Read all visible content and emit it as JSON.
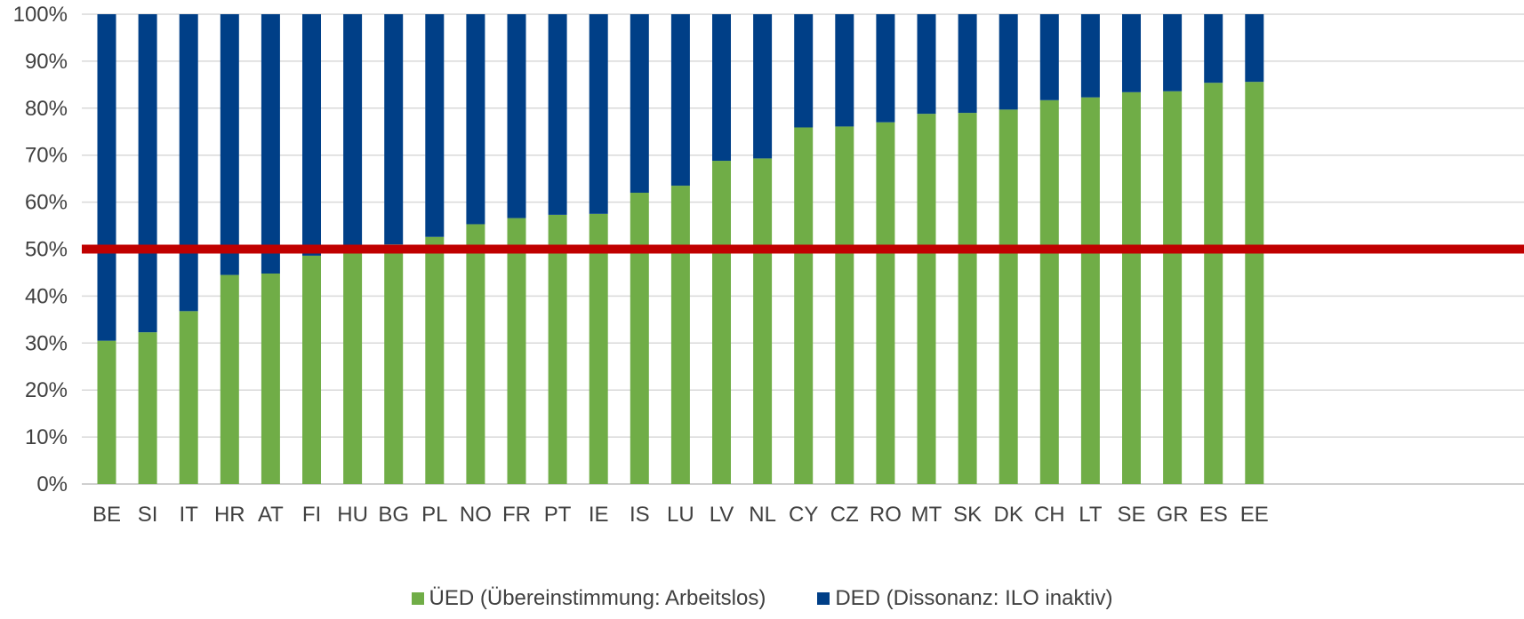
{
  "chart_data": {
    "type": "bar",
    "stacked": true,
    "percent": true,
    "categories": [
      "BE",
      "SI",
      "IT",
      "HR",
      "AT",
      "FI",
      "HU",
      "BG",
      "PL",
      "NO",
      "FR",
      "PT",
      "IE",
      "IS",
      "LU",
      "LV",
      "NL",
      "CY",
      "CZ",
      "RO",
      "MT",
      "SK",
      "DK",
      "CH",
      "LT",
      "SE",
      "GR",
      "ES",
      "EE"
    ],
    "series": [
      {
        "name": "ÜED (Übereinstimmung: Arbeitslos)",
        "color": "#70ad47",
        "values": [
          30.5,
          32.3,
          36.8,
          44.5,
          44.8,
          48.6,
          50.2,
          51.0,
          52.6,
          55.3,
          56.6,
          57.3,
          57.5,
          62.0,
          63.5,
          68.8,
          69.3,
          75.9,
          76.1,
          77.0,
          78.8,
          79.0,
          79.7,
          81.7,
          82.3,
          83.4,
          83.6,
          85.4,
          85.6
        ]
      },
      {
        "name": "DED (Dissonanz: ILO inaktiv)",
        "color": "#003f87",
        "values": [
          69.5,
          67.7,
          63.2,
          55.5,
          55.2,
          51.4,
          49.8,
          49.0,
          47.4,
          44.7,
          43.4,
          42.7,
          42.5,
          38.0,
          36.5,
          31.2,
          30.7,
          24.1,
          23.9,
          23.0,
          21.2,
          21.0,
          20.3,
          18.3,
          17.7,
          16.6,
          16.4,
          14.6,
          14.4
        ]
      }
    ],
    "yticks": [
      "0%",
      "10%",
      "20%",
      "30%",
      "40%",
      "50%",
      "60%",
      "70%",
      "80%",
      "90%",
      "100%"
    ],
    "ylim": [
      0,
      100
    ],
    "reference_line": {
      "value": 50,
      "color": "#c00000"
    },
    "grid": true,
    "legend_position": "bottom"
  }
}
